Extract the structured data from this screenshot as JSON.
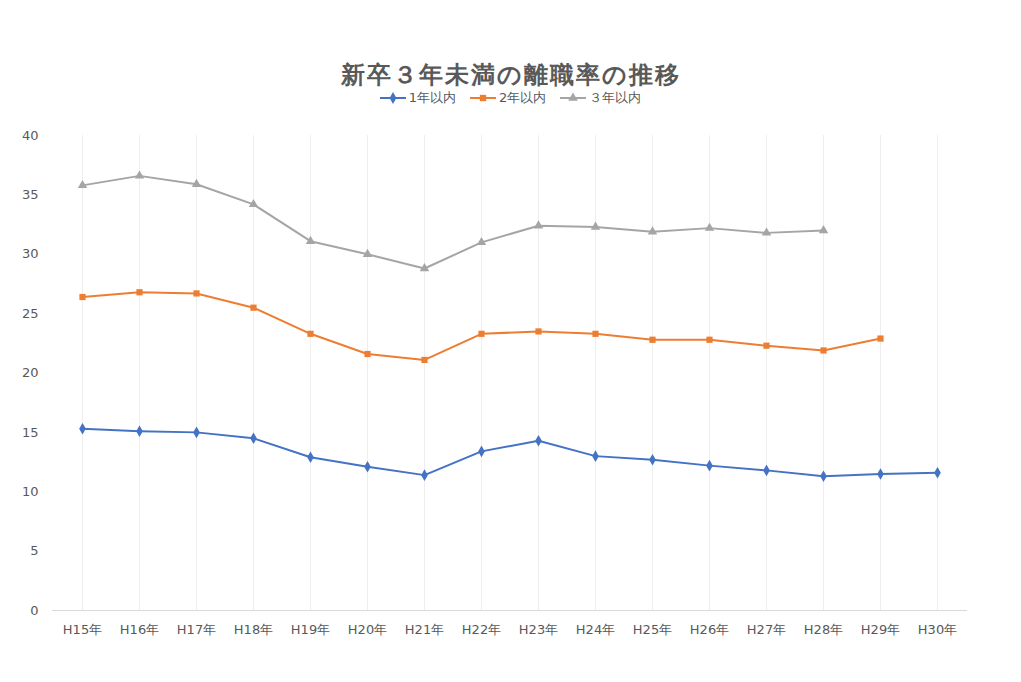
{
  "chart_data": {
    "type": "line",
    "title": "新卒３年未満の離職率の推移",
    "categories": [
      "H15年",
      "H16年",
      "H17年",
      "H18年",
      "H19年",
      "H20年",
      "H21年",
      "H22年",
      "H23年",
      "H24年",
      "H25年",
      "H26年",
      "H27年",
      "H28年",
      "H29年",
      "H30年"
    ],
    "series": [
      {
        "name": "1年以内",
        "color": "#4472c4",
        "marker": "diamond",
        "values": [
          15.3,
          15.1,
          15.0,
          14.5,
          12.9,
          12.1,
          11.4,
          13.4,
          14.3,
          13.0,
          12.7,
          12.2,
          11.8,
          11.3,
          11.5,
          11.6
        ]
      },
      {
        "name": "2年以内",
        "color": "#ed7d31",
        "marker": "square",
        "values": [
          26.4,
          26.8,
          26.7,
          25.5,
          23.3,
          21.6,
          21.1,
          23.3,
          23.5,
          23.3,
          22.8,
          22.8,
          22.3,
          21.9,
          22.9,
          null
        ]
      },
      {
        "name": "３年以内",
        "color": "#a5a5a5",
        "marker": "triangle",
        "values": [
          35.8,
          36.6,
          35.9,
          34.2,
          31.1,
          30.0,
          28.8,
          31.0,
          32.4,
          32.3,
          31.9,
          32.2,
          31.8,
          32.0,
          null,
          null
        ]
      }
    ],
    "ylim": [
      0,
      40
    ],
    "yticks": [
      0,
      5,
      10,
      15,
      20,
      25,
      30,
      35,
      40
    ],
    "grid": true,
    "legend": "top"
  }
}
